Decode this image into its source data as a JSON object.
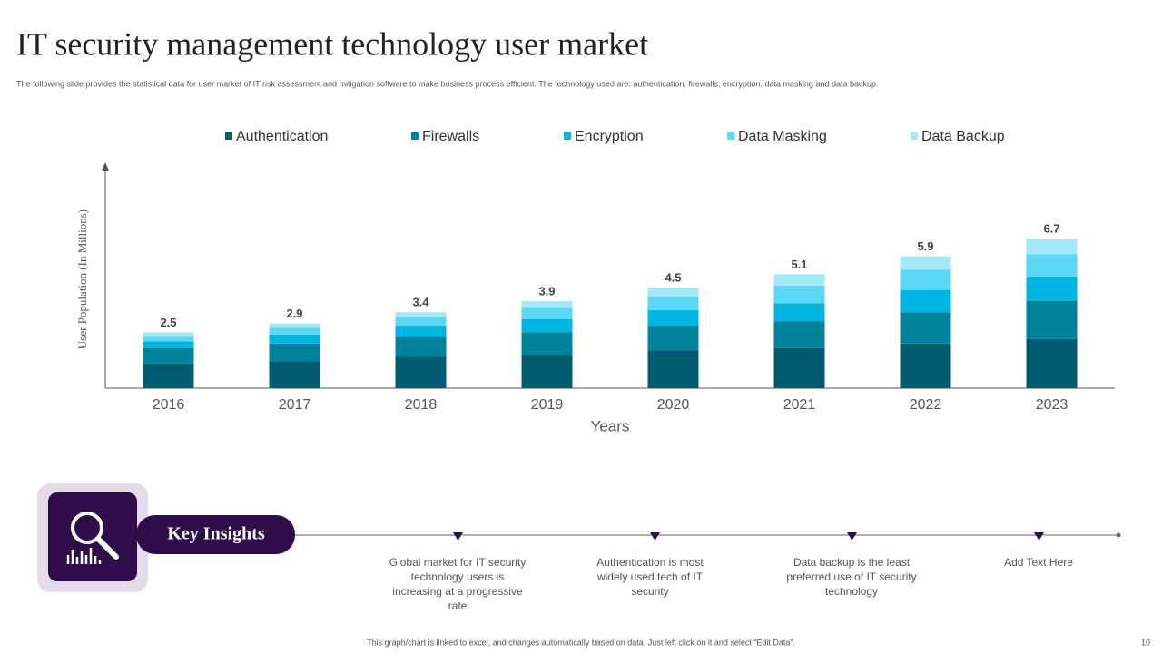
{
  "title": "IT security management technology user market",
  "subtitle": "The following slide provides the statistical data for user market of IT risk assessment and mitigation  software to make business process efficient. The technology used are: authentication, firewalls, encryption, data masking and data backup.",
  "chart_data": {
    "type": "bar",
    "stacked": true,
    "x_label": "Years",
    "y_label": "User Population (In Millions)",
    "categories": [
      "2016",
      "2017",
      "2018",
      "2019",
      "2020",
      "2021",
      "2022",
      "2023"
    ],
    "series": [
      {
        "name": "Authentication",
        "color": "#005a70",
        "values": [
          1.1,
          1.2,
          1.4,
          1.5,
          1.7,
          1.8,
          2.0,
          2.2
        ]
      },
      {
        "name": "Firewalls",
        "color": "#00829c",
        "values": [
          0.7,
          0.8,
          0.9,
          1.0,
          1.1,
          1.2,
          1.4,
          1.7
        ]
      },
      {
        "name": "Encryption",
        "color": "#00b5e2",
        "values": [
          0.3,
          0.4,
          0.5,
          0.6,
          0.7,
          0.8,
          1.0,
          1.1
        ]
      },
      {
        "name": "Data Masking",
        "color": "#5ad8f5",
        "values": [
          0.2,
          0.3,
          0.4,
          0.5,
          0.6,
          0.8,
          0.9,
          1.0
        ]
      },
      {
        "name": "Data Backup",
        "color": "#a3e9f9",
        "values": [
          0.2,
          0.2,
          0.2,
          0.3,
          0.4,
          0.5,
          0.6,
          0.7
        ]
      }
    ],
    "totals": [
      2.5,
      2.9,
      3.4,
      3.9,
      4.5,
      5.1,
      5.9,
      6.7
    ],
    "legend": "top"
  },
  "insights": {
    "heading": "Key Insights",
    "items": [
      "Global market for IT security technology users is increasing at a progressive rate",
      "Authentication is most widely used tech of IT security",
      "Data backup is the least preferred  use of IT security technology",
      "Add Text Here"
    ]
  },
  "footer": "This graph/chart is linked to excel, and changes automatically based on data. Just left click on it and select “Edit Data”.",
  "page_number": 10
}
